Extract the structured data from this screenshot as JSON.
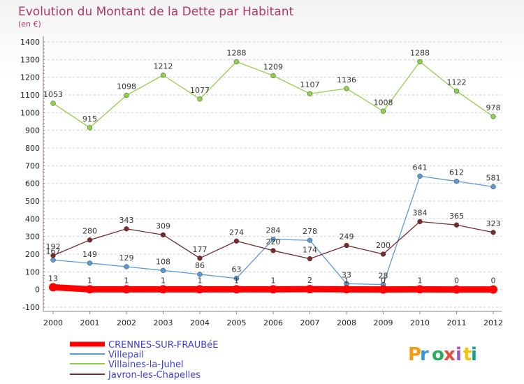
{
  "chart_data": {
    "type": "line",
    "title": "Evolution du Montant de la Dette par Habitant",
    "subtitle": "(en €)",
    "x": [
      "2000",
      "2001",
      "2002",
      "2003",
      "2004",
      "2005",
      "2006",
      "2007",
      "2008",
      "2009",
      "2010",
      "2011",
      "2012"
    ],
    "ylim": [
      -100,
      1400
    ],
    "yticks": [
      -100,
      0,
      100,
      200,
      300,
      400,
      500,
      600,
      700,
      800,
      900,
      1000,
      1100,
      1200,
      1300,
      1400
    ],
    "ytick_labels": [
      "-100",
      "0",
      "100",
      "200",
      "300",
      "400",
      "500",
      "600",
      "700",
      "800",
      "900",
      "1000",
      "1100",
      "1200",
      "1300",
      "1400"
    ],
    "grid": "horizontal dashed",
    "legend_position": "bottom-left",
    "series": [
      {
        "name": "CRENNES-SUR-FRAUBéE",
        "color": "#ff0000",
        "emphasis": true,
        "values": [
          13,
          1,
          1,
          1,
          1,
          1,
          1,
          2,
          1,
          0,
          1,
          0,
          0
        ],
        "labels": [
          "13",
          "1",
          "1",
          "1",
          "1",
          "1",
          "1",
          "2",
          "1",
          "0",
          "1",
          "0",
          "0"
        ]
      },
      {
        "name": "Villepail",
        "color": "#5b9bd5",
        "values": [
          167,
          149,
          129,
          108,
          86,
          63,
          284,
          278,
          33,
          28,
          641,
          612,
          581
        ],
        "labels": [
          "167",
          "149",
          "129",
          "108",
          "86",
          "63",
          "284",
          "278",
          "33",
          "28",
          "641",
          "612",
          "581"
        ]
      },
      {
        "name": "Villaines-la-Juhel",
        "color": "#8fd24a",
        "values": [
          1053,
          915,
          1098,
          1212,
          1077,
          1288,
          1209,
          1107,
          1136,
          1008,
          1288,
          1122,
          978
        ],
        "labels": [
          "1053",
          "915",
          "1098",
          "1212",
          "1077",
          "1288",
          "1209",
          "1107",
          "1136",
          "1008",
          "1288",
          "1122",
          "978"
        ]
      },
      {
        "name": "Javron-les-Chapelles",
        "color": "#7a2a2a",
        "values": [
          192,
          280,
          343,
          309,
          177,
          274,
          220,
          174,
          249,
          200,
          384,
          365,
          323
        ],
        "labels": [
          "192",
          "280",
          "343",
          "309",
          "177",
          "274",
          "220",
          "174",
          "249",
          "200",
          "384",
          "365",
          "323"
        ]
      }
    ]
  },
  "branding": {
    "logo_text": "Proxiti",
    "logo_colors": [
      "#f39c12",
      "#3498db",
      "#27ae60",
      "#e74c3c",
      "#9b59b6",
      "#f1c40f",
      "#16a085"
    ]
  }
}
